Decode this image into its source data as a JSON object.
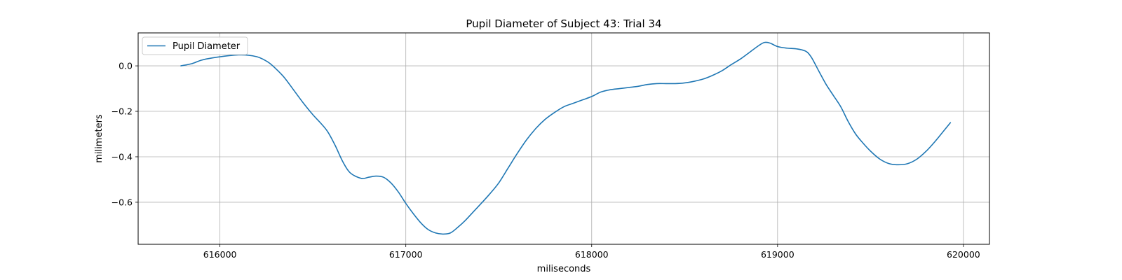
{
  "chart_data": {
    "type": "line",
    "title": "Pupil Diameter of Subject 43: Trial 34",
    "xlabel": "miliseconds",
    "ylabel": "milimeters",
    "xlim": [
      615560,
      620140
    ],
    "ylim": [
      -0.785,
      0.145
    ],
    "xticks": [
      616000,
      617000,
      618000,
      619000,
      620000
    ],
    "xtick_labels": [
      "616000",
      "617000",
      "618000",
      "619000",
      "620000"
    ],
    "yticks": [
      0.0,
      -0.2,
      -0.4,
      -0.6
    ],
    "ytick_labels": [
      "0.0",
      "−0.2",
      "−0.4",
      "−0.6"
    ],
    "grid": true,
    "legend": {
      "placement": "top-left",
      "entries": [
        "Pupil Diameter"
      ]
    },
    "series": [
      {
        "name": "Pupil Diameter",
        "color": "#1f77b4",
        "x": [
          615790,
          615850,
          615900,
          615960,
          616050,
          616100,
          616150,
          616200,
          616230,
          616270,
          616310,
          616350,
          616400,
          616450,
          616500,
          616540,
          616580,
          616620,
          616660,
          616700,
          616760,
          616800,
          616840,
          616880,
          616920,
          616960,
          617000,
          617040,
          617080,
          617120,
          617160,
          617200,
          617240,
          617280,
          617320,
          617360,
          617400,
          617450,
          617500,
          617550,
          617600,
          617650,
          617700,
          617750,
          617800,
          617850,
          617900,
          617950,
          618000,
          618050,
          618100,
          618150,
          618200,
          618250,
          618300,
          618350,
          618400,
          618450,
          618500,
          618550,
          618600,
          618650,
          618700,
          618750,
          618800,
          618850,
          618900,
          618930,
          618960,
          619000,
          619050,
          619100,
          619150,
          619180,
          619220,
          619260,
          619300,
          619340,
          619380,
          619420,
          619460,
          619500,
          619550,
          619600,
          619650,
          619700,
          619750,
          619800,
          619850,
          619900,
          619930
        ],
        "y": [
          0.0,
          0.01,
          0.025,
          0.035,
          0.045,
          0.048,
          0.047,
          0.04,
          0.03,
          0.01,
          -0.02,
          -0.055,
          -0.11,
          -0.165,
          -0.215,
          -0.25,
          -0.29,
          -0.35,
          -0.42,
          -0.47,
          -0.495,
          -0.49,
          -0.485,
          -0.49,
          -0.515,
          -0.555,
          -0.605,
          -0.65,
          -0.69,
          -0.72,
          -0.735,
          -0.74,
          -0.735,
          -0.71,
          -0.68,
          -0.645,
          -0.61,
          -0.565,
          -0.515,
          -0.45,
          -0.385,
          -0.325,
          -0.275,
          -0.235,
          -0.205,
          -0.18,
          -0.165,
          -0.15,
          -0.135,
          -0.115,
          -0.105,
          -0.1,
          -0.095,
          -0.09,
          -0.082,
          -0.078,
          -0.078,
          -0.078,
          -0.075,
          -0.068,
          -0.058,
          -0.042,
          -0.022,
          0.005,
          0.03,
          0.06,
          0.09,
          0.103,
          0.1,
          0.085,
          0.078,
          0.075,
          0.065,
          0.04,
          -0.02,
          -0.08,
          -0.13,
          -0.18,
          -0.245,
          -0.3,
          -0.34,
          -0.375,
          -0.41,
          -0.43,
          -0.435,
          -0.43,
          -0.41,
          -0.375,
          -0.33,
          -0.28,
          -0.25
        ]
      }
    ]
  }
}
